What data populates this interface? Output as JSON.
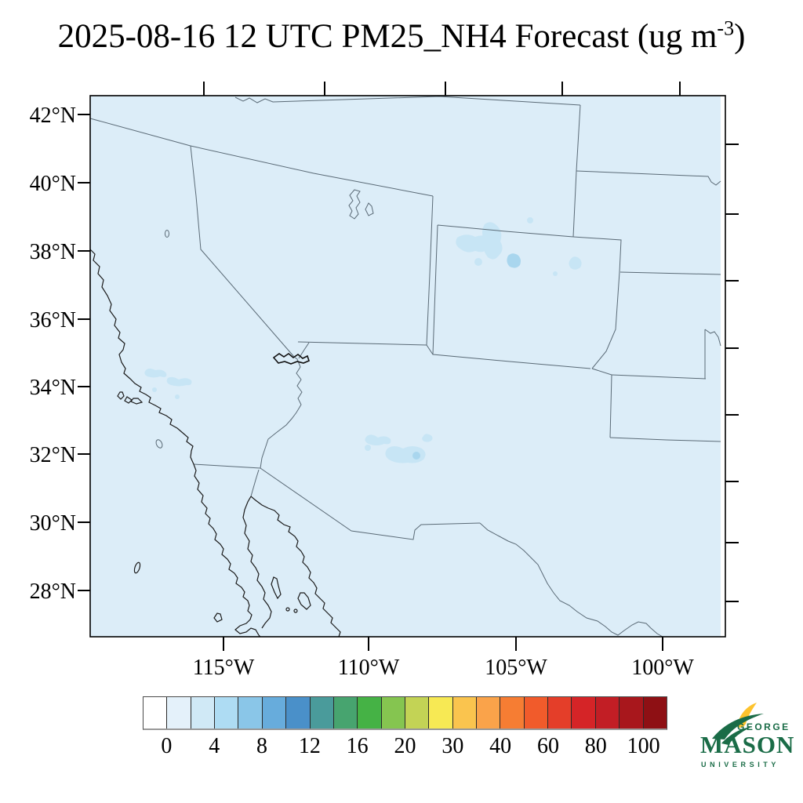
{
  "title": {
    "prefix": "2025-08-16 12 UTC PM25_NH4 Forecast (ug m",
    "exponent": "-3",
    "suffix": ")"
  },
  "map": {
    "lat_ticks": [
      "42°N",
      "40°N",
      "38°N",
      "36°N",
      "34°N",
      "32°N",
      "30°N",
      "28°N"
    ],
    "lon_ticks": [
      "115°W",
      "110°W",
      "105°W",
      "100°W"
    ],
    "fill_color": "#dcedf8",
    "patch_color": "#c7e5f5",
    "patch_core_color": "#a9d6ee",
    "border_color": "#5a6a76",
    "coast_color": "#1a1a1a"
  },
  "colorbar": {
    "labels": [
      "0",
      "4",
      "8",
      "12",
      "16",
      "20",
      "30",
      "40",
      "60",
      "80",
      "100"
    ],
    "colors": [
      "#ffffff",
      "#e4f1fa",
      "#d0e9f6",
      "#aedcf3",
      "#8ac6e8",
      "#67acdc",
      "#4a90c9",
      "#4a9b9b",
      "#47a46f",
      "#45b245",
      "#85c550",
      "#c3d355",
      "#f7e954",
      "#fac44e",
      "#faa34a",
      "#f67d33",
      "#f15b2b",
      "#e43e29",
      "#d52427",
      "#c21e25",
      "#a8171c",
      "#8e1014"
    ]
  },
  "logo": {
    "george": "GEORGE",
    "mason": "MASON",
    "university": "UNIVERSITY",
    "green": "#1a6c47",
    "gold": "#fdc32d"
  }
}
